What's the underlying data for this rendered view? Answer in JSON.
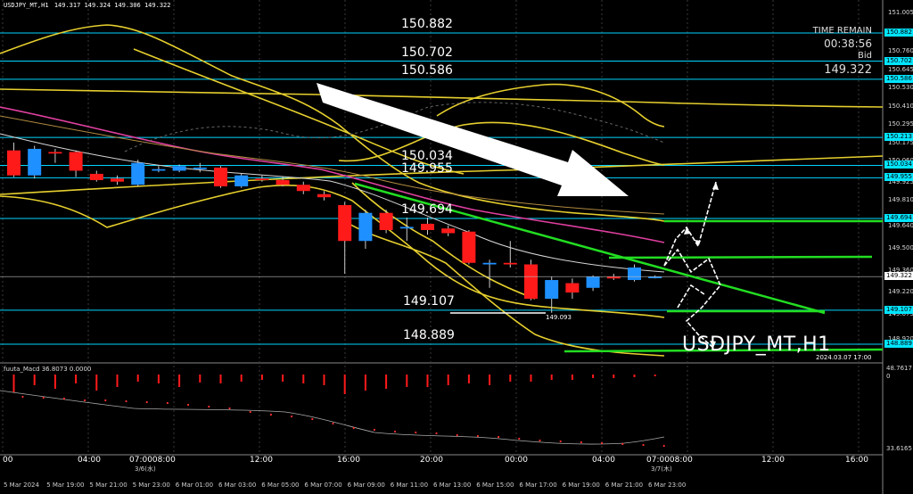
{
  "header": {
    "symbol": "USDJPY_MT,H1",
    "ohlc": "149.317 149.324 149.306 149.322"
  },
  "info": {
    "time_remain_label": "TIME REMAIN",
    "time_remain": "00:38:56",
    "bid_label": "Bid",
    "bid": "149.322"
  },
  "watermark": "USDJPY_MT,H1",
  "timestamp": "2024.03.07 17:00",
  "low_label": "149.093",
  "levels": [
    {
      "price": "150.882",
      "label": "150.882",
      "tag": "150.882"
    },
    {
      "price": "150.702",
      "label": "150.702",
      "tag": "150.702"
    },
    {
      "price": "150.586",
      "label": "150.586",
      "tag": "150.586"
    },
    {
      "price": "150.213",
      "label": "",
      "tag": "150.213"
    },
    {
      "price": "150.034",
      "label": "150.034",
      "tag": "150.034"
    },
    {
      "price": "149.955",
      "label": "149.955",
      "tag": "149.955"
    },
    {
      "price": "149.694",
      "label": "149.694",
      "tag": "149.694"
    },
    {
      "price": "149.107",
      "label": "149.107",
      "tag": "149.107"
    },
    {
      "price": "148.889",
      "label": "148.889",
      "tag": "148.889"
    }
  ],
  "current_price_tag": "149.322",
  "price_scale": [
    "151.005",
    "150.880",
    "150.760",
    "150.645",
    "150.530",
    "150.410",
    "150.295",
    "150.175",
    "150.060",
    "149.925",
    "149.810",
    "149.640",
    "149.500",
    "149.360",
    "149.220",
    "149.075",
    "148.920",
    "148.790"
  ],
  "macd": {
    "label": "fuuta_Macd 36.8073  0.0000",
    "scale_top": "48.7617",
    "scale_zero": "0",
    "scale_bottom": "33.6165"
  },
  "x_axis": {
    "major": [
      "00",
      "04:00",
      "07:0008:00",
      "12:00",
      "16:00",
      "20:00",
      "00:00",
      "04:00",
      "07:0008:00",
      "12:00",
      "16:00"
    ],
    "dates": [
      "3/6(水)",
      "3/7(木)"
    ],
    "minor": [
      "5 Mar 2024",
      "5 Mar 19:00",
      "5 Mar 21:00",
      "5 Mar 23:00",
      "6 Mar 01:00",
      "6 Mar 03:00",
      "6 Mar 05:00",
      "6 Mar 07:00",
      "6 Mar 09:00",
      "6 Mar 11:00",
      "6 Mar 13:00",
      "6 Mar 15:00",
      "6 Mar 17:00",
      "6 Mar 19:00",
      "6 Mar 21:00",
      "6 Mar 23:00"
    ]
  },
  "colors": {
    "bull": "#1e90ff",
    "bear": "#ff1a1a",
    "level_line": "#00d5ff",
    "trend": "#22dd22",
    "band": "#e6cf2e",
    "ma": "#e040a0",
    "arrow": "#ffffff"
  },
  "chart_data": {
    "type": "candlestick",
    "title": "USDJPY_MT,H1",
    "ylim": [
      148.75,
      151.05
    ],
    "candles": [
      {
        "o": 150.13,
        "h": 150.18,
        "l": 149.96,
        "c": 149.97
      },
      {
        "o": 149.97,
        "h": 150.16,
        "l": 149.95,
        "c": 150.14
      },
      {
        "o": 150.12,
        "h": 150.14,
        "l": 150.05,
        "c": 150.11
      },
      {
        "o": 150.12,
        "h": 150.13,
        "l": 149.96,
        "c": 150.0
      },
      {
        "o": 149.98,
        "h": 150.0,
        "l": 149.93,
        "c": 149.94
      },
      {
        "o": 149.95,
        "h": 149.97,
        "l": 149.91,
        "c": 149.93
      },
      {
        "o": 149.91,
        "h": 150.07,
        "l": 149.9,
        "c": 150.05
      },
      {
        "o": 150.0,
        "h": 150.03,
        "l": 149.99,
        "c": 150.01
      },
      {
        "o": 150.0,
        "h": 150.04,
        "l": 149.99,
        "c": 150.03
      },
      {
        "o": 150.01,
        "h": 150.05,
        "l": 149.99,
        "c": 150.02
      },
      {
        "o": 150.02,
        "h": 150.03,
        "l": 149.89,
        "c": 149.9
      },
      {
        "o": 149.9,
        "h": 149.98,
        "l": 149.89,
        "c": 149.97
      },
      {
        "o": 149.95,
        "h": 149.97,
        "l": 149.93,
        "c": 149.94
      },
      {
        "o": 149.94,
        "h": 149.96,
        "l": 149.9,
        "c": 149.91
      },
      {
        "o": 149.91,
        "h": 149.93,
        "l": 149.85,
        "c": 149.87
      },
      {
        "o": 149.85,
        "h": 149.87,
        "l": 149.81,
        "c": 149.83
      },
      {
        "o": 149.78,
        "h": 149.8,
        "l": 149.34,
        "c": 149.55
      },
      {
        "o": 149.55,
        "h": 149.75,
        "l": 149.5,
        "c": 149.73
      },
      {
        "o": 149.73,
        "h": 149.75,
        "l": 149.6,
        "c": 149.62
      },
      {
        "o": 149.63,
        "h": 149.7,
        "l": 149.55,
        "c": 149.64
      },
      {
        "o": 149.66,
        "h": 149.7,
        "l": 149.59,
        "c": 149.62
      },
      {
        "o": 149.63,
        "h": 149.65,
        "l": 149.58,
        "c": 149.6
      },
      {
        "o": 149.61,
        "h": 149.62,
        "l": 149.4,
        "c": 149.41
      },
      {
        "o": 149.4,
        "h": 149.43,
        "l": 149.25,
        "c": 149.41
      },
      {
        "o": 149.41,
        "h": 149.55,
        "l": 149.38,
        "c": 149.4
      },
      {
        "o": 149.4,
        "h": 149.43,
        "l": 149.17,
        "c": 149.18
      },
      {
        "o": 149.18,
        "h": 149.32,
        "l": 149.09,
        "c": 149.3
      },
      {
        "o": 149.28,
        "h": 149.31,
        "l": 149.18,
        "c": 149.22
      },
      {
        "o": 149.25,
        "h": 149.33,
        "l": 149.23,
        "c": 149.32
      },
      {
        "o": 149.32,
        "h": 149.34,
        "l": 149.3,
        "c": 149.31
      },
      {
        "o": 149.3,
        "h": 149.4,
        "l": 149.29,
        "c": 149.38
      },
      {
        "o": 149.32,
        "h": 149.33,
        "l": 149.31,
        "c": 149.32
      }
    ]
  }
}
